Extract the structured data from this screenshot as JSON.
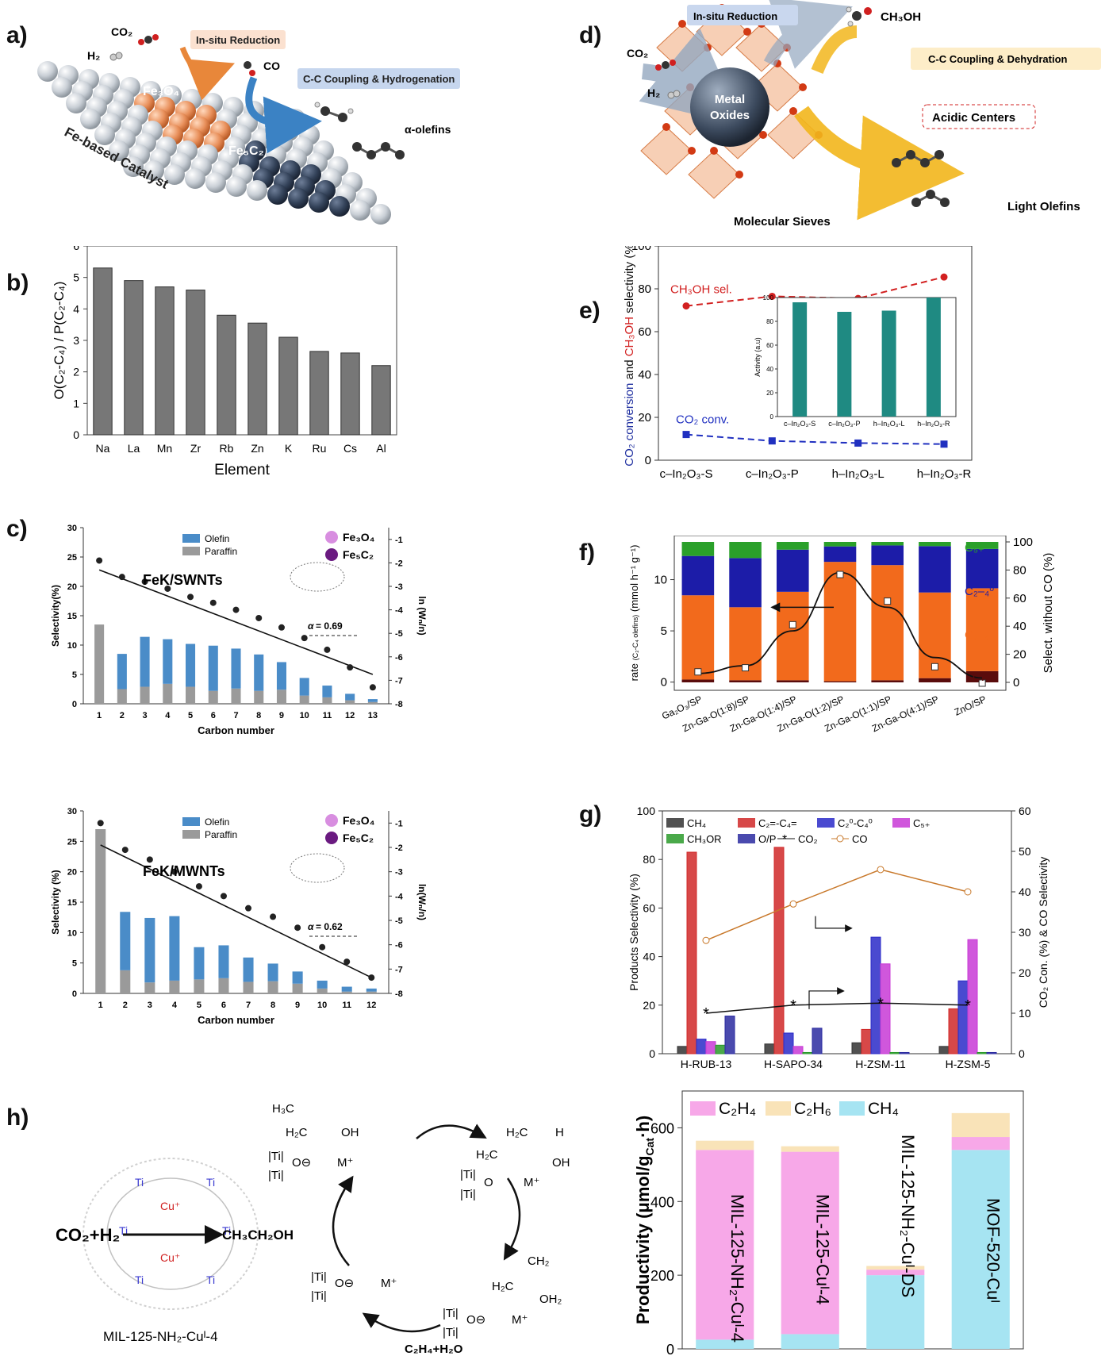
{
  "panels": {
    "a": "a)",
    "b": "b)",
    "c": "c)",
    "d": "d)",
    "e": "e)",
    "f": "f)",
    "g": "g)",
    "h": "h)"
  },
  "scheme_a": {
    "co2": "CO₂",
    "h2": "H₂",
    "co": "CO",
    "insitu": "In-situ Reduction",
    "coupling": "C-C Coupling & Hydrogenation",
    "fe3o4": "Fe₃O₄",
    "fe5c2": "Fe₅C₂",
    "catalyst": "Fe-based Catalyst",
    "olefins": "α-olefins",
    "colors": {
      "fe3o4": "#e88f5a",
      "fe5c2": "#34435a",
      "sphere": "#c9cfd6",
      "arrow_orange": "#e8873a",
      "arrow_blue": "#3b82c4",
      "tag_orange": "#fbe1d0",
      "tag_blue": "#c6d6ee"
    }
  },
  "scheme_d": {
    "insitu": "In-situ Reduction",
    "ch3oh": "CH₃OH",
    "co2": "CO₂",
    "h2": "H₂",
    "coupling": "C-C Coupling & Dehydration",
    "metal_oxides_1": "Metal",
    "metal_oxides_2": "Oxides",
    "acidic": "Acidic Centers",
    "sieves": "Molecular Sieves",
    "light_olefins": "Light Olefins",
    "colors": {
      "tag_blue": "#c9d7ee",
      "tag_yellow": "#fdedc8",
      "sieve": "#f0a878",
      "arrow": "#f2b61c"
    }
  },
  "chart_data": [
    {
      "id": "b",
      "type": "bar",
      "categories": [
        "Na",
        "La",
        "Mn",
        "Zr",
        "Rb",
        "Zn",
        "K",
        "Ru",
        "Cs",
        "Al"
      ],
      "values": [
        5.3,
        4.9,
        4.7,
        4.6,
        3.8,
        3.55,
        3.1,
        2.65,
        2.6,
        2.2
      ],
      "xlabel": "Element",
      "ylabel": "O(C₂-C₄) / P(C₂-C₄)",
      "ylim": [
        0,
        6
      ],
      "yticks": [
        "0",
        "1",
        "2",
        "3",
        "4",
        "5",
        "6"
      ],
      "color": "#777777"
    },
    {
      "id": "c1",
      "type": "bar",
      "title": "FeK/SWNTs",
      "categories": [
        "1",
        "2",
        "3",
        "4",
        "5",
        "6",
        "7",
        "8",
        "9",
        "10",
        "11",
        "12",
        "13"
      ],
      "series": [
        {
          "name": "Olefin",
          "values": [
            0,
            6.0,
            8.5,
            7.6,
            7.3,
            7.7,
            6.8,
            6.2,
            4.7,
            3.0,
            2.0,
            1.1,
            0.5
          ]
        },
        {
          "name": "Paraffin",
          "values": [
            13.5,
            2.5,
            2.9,
            3.4,
            2.9,
            2.2,
            2.6,
            2.2,
            2.4,
            1.4,
            1.1,
            0.6,
            0.3
          ]
        }
      ],
      "ln_x": [
        1,
        2,
        3,
        4,
        5,
        6,
        7,
        8,
        9,
        10,
        11,
        12,
        13
      ],
      "ln_values": [
        -1.9,
        -2.6,
        -2.8,
        -3.1,
        -3.45,
        -3.7,
        -4.0,
        -4.35,
        -4.75,
        -5.2,
        -5.7,
        -6.45,
        -7.3
      ],
      "ln_fit": [
        [
          1,
          -2.3
        ],
        [
          13,
          -6.75
        ]
      ],
      "alpha": "= 0.69",
      "alpha_symbol": "α",
      "xlabel": "Carbon number",
      "ylabel": "Selectivity(%)",
      "y2label": "ln (Wₙ/n)",
      "ylim": [
        0,
        30
      ],
      "y2lim": [
        -8,
        -0.5
      ],
      "yticks": [
        "0",
        "5",
        "10",
        "15",
        "20",
        "25",
        "30"
      ],
      "y2ticks": [
        "-1",
        "-2",
        "-3",
        "-4",
        "-5",
        "-6",
        "-7",
        "-8"
      ],
      "legend": [
        "Olefin",
        "Paraffin"
      ],
      "species": [
        "Fe₃O₄",
        "Fe₅C₂"
      ],
      "colors": {
        "olefin": "#4a8cc8",
        "paraffin": "#9a9a9a",
        "fe3o4": "#d88ee0",
        "fe5c2": "#6a1a80"
      }
    },
    {
      "id": "c2",
      "type": "bar",
      "title": "FeK/MWNTs",
      "categories": [
        "1",
        "2",
        "3",
        "4",
        "5",
        "6",
        "7",
        "8",
        "9",
        "10",
        "11",
        "12"
      ],
      "series": [
        {
          "name": "Olefin",
          "values": [
            0,
            9.6,
            10.6,
            10.6,
            5.3,
            5.4,
            4.0,
            2.9,
            2.0,
            1.3,
            0.8,
            0.5
          ]
        },
        {
          "name": "Paraffin",
          "values": [
            27.0,
            3.8,
            1.8,
            2.1,
            2.3,
            2.5,
            1.9,
            2.0,
            1.6,
            0.8,
            0.3,
            0.3
          ]
        }
      ],
      "ln_x": [
        1,
        2,
        3,
        4,
        5,
        6,
        7,
        8,
        9,
        10,
        11,
        12
      ],
      "ln_values": [
        -1.0,
        -2.1,
        -2.5,
        -3.0,
        -3.6,
        -4.0,
        -4.5,
        -4.85,
        -5.3,
        -6.1,
        -6.7,
        -7.35
      ],
      "ln_fit": [
        [
          1,
          -1.9
        ],
        [
          12,
          -7.35
        ]
      ],
      "alpha": "= 0.62",
      "alpha_symbol": "α",
      "xlabel": "Carbon number",
      "ylabel": "Selectivity (%)",
      "y2label": "ln(Wₙ/n)",
      "ylim": [
        0,
        30
      ],
      "y2lim": [
        -8,
        -0.5
      ],
      "yticks": [
        "0",
        "5",
        "10",
        "15",
        "20",
        "25",
        "30"
      ],
      "y2ticks": [
        "-1",
        "-2",
        "-3",
        "-4",
        "-5",
        "-6",
        "-7",
        "-8"
      ],
      "legend": [
        "Olefin",
        "Paraffin"
      ],
      "species": [
        "Fe₃O₄",
        "Fe₅C₂"
      ],
      "colors": {
        "olefin": "#4a8cc8",
        "paraffin": "#9a9a9a",
        "fe3o4": "#d88ee0",
        "fe5c2": "#6a1a80"
      }
    },
    {
      "id": "e",
      "type": "line",
      "categories": [
        "c–In₂O₃-S",
        "c–In₂O₃-P",
        "h–In₂O₃-L",
        "h–In₂O₃-R"
      ],
      "series": [
        {
          "name": "CH₃OH sel.",
          "values": [
            72,
            76.5,
            75.5,
            85.5
          ],
          "color": "#d22020"
        },
        {
          "name": "CO₂ conv.",
          "values": [
            12,
            9,
            8,
            7.5
          ],
          "color": "#2030c0"
        }
      ],
      "ylabel_parts": [
        "CO₂ conversion",
        " and ",
        "CH₃OH",
        " selectivity (%)"
      ],
      "ylim": [
        0,
        100
      ],
      "yticks": [
        "0",
        "20",
        "40",
        "60",
        "80",
        "100"
      ],
      "inset": {
        "type": "bar",
        "ylabel": "Activity (a.u)",
        "categories": [
          "c–In₂O₃-S",
          "c–In₂O₃-P",
          "h–In₂O₃-L",
          "h–In₂O₃-R"
        ],
        "values": [
          96,
          88,
          89,
          100
        ],
        "ylim": [
          0,
          100
        ],
        "yticks": [
          "0",
          "20",
          "40",
          "60",
          "80",
          "100"
        ],
        "color": "#1f8a82"
      }
    },
    {
      "id": "f",
      "type": "bar",
      "categories": [
        "Ga₂O₃/SP",
        "Zn-Ga-O(1:8)/SP",
        "Zn-Ga-O(1:4)/SP",
        "Zn-Ga-O(1:2)/SP",
        "Zn-Ga-O(1:1)/SP",
        "Zn-Ga-O(4:1)/SP",
        "ZnO/SP"
      ],
      "series": [
        {
          "name": "CH₄",
          "values": [
            2,
            1.5,
            1.5,
            0.8,
            1.5,
            3,
            8
          ],
          "color": "#5a0c0c"
        },
        {
          "name": "C₂–₄=",
          "values": [
            60,
            52,
            63,
            85,
            82,
            61,
            59
          ],
          "color": "#f26a1c"
        },
        {
          "name": "C₂–₄⁰",
          "values": [
            28,
            35,
            30,
            11,
            14,
            33,
            28
          ],
          "color": "#1c1ca8"
        },
        {
          "name": "C₅₊",
          "values": [
            10,
            11.5,
            5.5,
            3.2,
            2.5,
            3,
            5
          ],
          "color": "#2aa02a"
        }
      ],
      "rate": [
        1.0,
        1.4,
        5.6,
        10.5,
        7.9,
        1.5,
        -0.1
      ],
      "rate_curve": [
        [
          0,
          0.85
        ],
        [
          1,
          1.6
        ],
        [
          2,
          5.0
        ],
        [
          3,
          10.7
        ],
        [
          4,
          7.3
        ],
        [
          5,
          2.4
        ],
        [
          6,
          0.4
        ]
      ],
      "ylabel_prefix": "rate",
      "ylabel_sub": "(C₂-C₄ olefins)",
      "ylabel_suffix": " (mmol h⁻¹ g⁻¹)",
      "y2label": "Select. without CO (%)",
      "ylim": [
        -0.8,
        14.3
      ],
      "yticks": [
        "0",
        "5",
        "10"
      ],
      "y2lim": [
        0,
        100
      ],
      "y2ticks": [
        "0",
        "20",
        "40",
        "60",
        "80",
        "100"
      ],
      "labels": [
        "C₅₊",
        "C₂–₄⁰",
        "C₂–₄=",
        "CH₄"
      ]
    },
    {
      "id": "g",
      "type": "bar",
      "categories": [
        "H-RUB-13",
        "H-SAPO-34",
        "H-ZSM-11",
        "H-ZSM-5"
      ],
      "series": [
        {
          "name": "CH₄",
          "values": [
            3,
            4,
            4.5,
            3
          ]
        },
        {
          "name": "C₂=-C₄=",
          "values": [
            83,
            85,
            10,
            18.5
          ]
        },
        {
          "name": "C₂⁰-C₄⁰",
          "values": [
            6,
            8.5,
            48,
            30
          ]
        },
        {
          "name": "C₅₊",
          "values": [
            5,
            3,
            37,
            47
          ]
        },
        {
          "name": "CH₃OR",
          "values": [
            3.5,
            0.5,
            0.5,
            0.5
          ]
        },
        {
          "name": "O/P",
          "values": [
            15.5,
            10.5,
            0.5,
            0.5
          ]
        }
      ],
      "co2": [
        10,
        12,
        12.5,
        12
      ],
      "co": [
        28,
        37,
        45.5,
        40
      ],
      "legend": [
        "CH₄",
        "C₂=-C₄=",
        "C₂⁰-C₄⁰",
        "C₅₊",
        "CH₃OR",
        "O/P",
        "CO₂",
        "CO"
      ],
      "ylabel": "Products Selectivity (%)",
      "y2label": "CO₂ Con. (%) & CO Selectivity",
      "ylim": [
        0,
        100
      ],
      "yticks": [
        "0",
        "20",
        "40",
        "60",
        "80",
        "100"
      ],
      "y2lim": [
        0,
        60
      ],
      "y2ticks": [
        "0",
        "10",
        "20",
        "30",
        "40",
        "50",
        "60"
      ],
      "colors": [
        "#333333",
        "#d02828",
        "#2a2ac8",
        "#c83ad6",
        "#2a9a2a",
        "#2a2aa0",
        "#111111",
        "#c8782a"
      ]
    },
    {
      "id": "h2",
      "type": "bar",
      "categories": [
        "MIL-125-NH₂-Cuᴵ-4",
        "MIL-125-Cuᴵ-4",
        "MIL-125-NH₂-Cuᴵ-DS",
        "MOF-520-Cuᴵ"
      ],
      "series": [
        {
          "name": "CH₄",
          "values": [
            25,
            40,
            200,
            540
          ],
          "color": "#a6e4f2"
        },
        {
          "name": "C₂H₄",
          "values": [
            515,
            495,
            15,
            35
          ],
          "color": "#f7a8e8"
        },
        {
          "name": "C₂H₆",
          "values": [
            25,
            15,
            10,
            65
          ],
          "color": "#f9e3b8"
        }
      ],
      "legend": [
        "C₂H₄",
        "C₂H₆",
        "CH₄"
      ],
      "ylabel": "Productivity (μmol/g",
      "ylabel_sub": "Cat",
      "ylabel_end": "·h)",
      "ylim": [
        0,
        700
      ],
      "yticks": [
        "0",
        "200",
        "400",
        "600"
      ]
    }
  ],
  "scheme_h": {
    "co2h2": "CO₂+H₂",
    "ethanol": "CH₃CH₂OH",
    "mof_name": "MIL-125-NH₂-Cuᴵ-4",
    "products": "C₂H₄+H₂O",
    "h3c": "H₃C",
    "h2c": "H₂C",
    "oh": "OH",
    "h": "H",
    "ti": "|Ti|",
    "o": "O",
    "ominus": "O⊖",
    "mplus": "M⁺",
    "ch2": "CH₂",
    "oh2": "OH₂",
    "ti_atom": "Ti",
    "cu": "Cu⁺"
  }
}
